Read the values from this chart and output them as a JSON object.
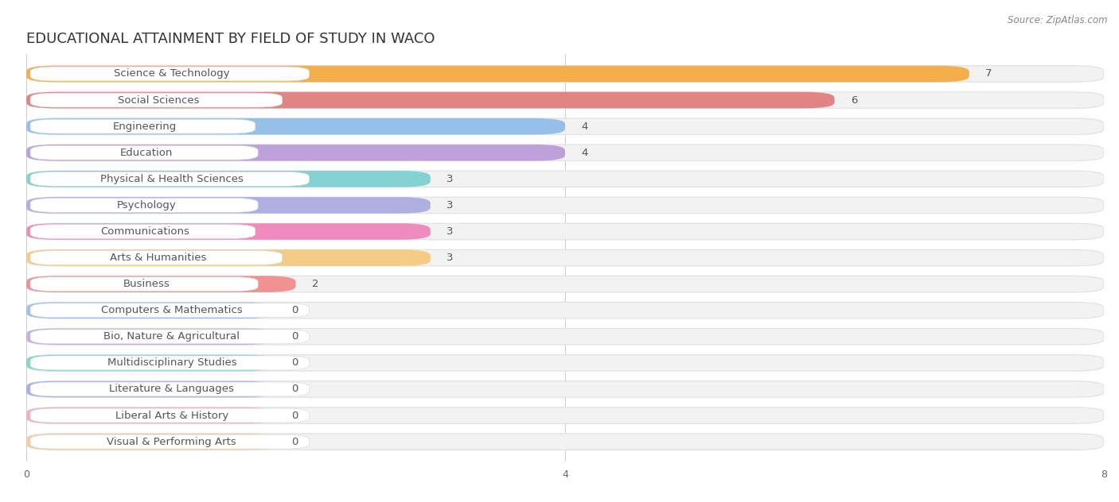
{
  "title": "EDUCATIONAL ATTAINMENT BY FIELD OF STUDY IN WACO",
  "source": "Source: ZipAtlas.com",
  "categories": [
    "Science & Technology",
    "Social Sciences",
    "Engineering",
    "Education",
    "Physical & Health Sciences",
    "Psychology",
    "Communications",
    "Arts & Humanities",
    "Business",
    "Computers & Mathematics",
    "Bio, Nature & Agricultural",
    "Multidisciplinary Studies",
    "Literature & Languages",
    "Liberal Arts & History",
    "Visual & Performing Arts"
  ],
  "values": [
    7,
    6,
    4,
    4,
    3,
    3,
    3,
    3,
    2,
    0,
    0,
    0,
    0,
    0,
    0
  ],
  "colors": [
    "#F5A83A",
    "#E07878",
    "#8BBCE8",
    "#B898D8",
    "#78CECE",
    "#A8A8E0",
    "#F080B8",
    "#F5C87A",
    "#F08888",
    "#9ABCE8",
    "#C4A8E0",
    "#78D4C8",
    "#A0A8E8",
    "#F0A8C8",
    "#F5C898"
  ],
  "xlim": [
    0,
    8
  ],
  "xticks": [
    0,
    4,
    8
  ],
  "background_color": "#ffffff",
  "bar_bg_color": "#f2f2f2",
  "bar_border_color": "#e0e0e0",
  "title_fontsize": 13,
  "label_fontsize": 9.5,
  "value_fontsize": 9.5,
  "bar_height": 0.62,
  "label_box_color": "#ffffff",
  "label_color": "#555555",
  "value_color": "#555555"
}
